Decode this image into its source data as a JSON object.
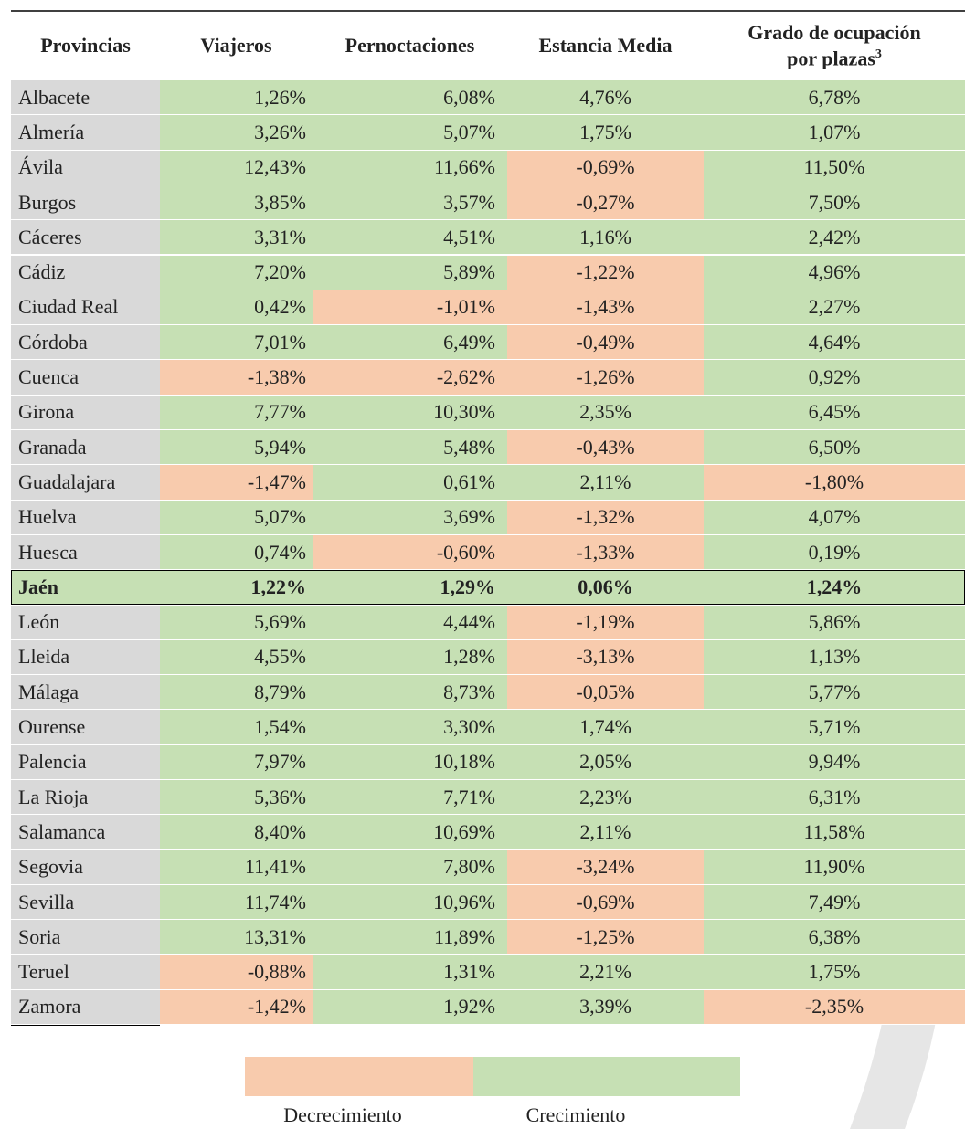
{
  "table": {
    "header": [
      "Provincias",
      "Viajeros",
      "Pernoctaciones",
      "Estancia Media",
      "Grado de ocupación por plazas"
    ],
    "header_note": "3",
    "rows": [
      [
        "Albacete",
        "1,26%",
        "6,08%",
        "4,76%",
        "6,78%"
      ],
      [
        "Almería",
        "3,26%",
        "5,07%",
        "1,75%",
        "1,07%"
      ],
      [
        "Ávila",
        "12,43%",
        "11,66%",
        "-0,69%",
        "11,50%"
      ],
      [
        "Burgos",
        "3,85%",
        "3,57%",
        "-0,27%",
        "7,50%"
      ],
      [
        "Cáceres",
        "3,31%",
        "4,51%",
        "1,16%",
        "2,42%"
      ],
      [
        "Cádiz",
        "7,20%",
        "5,89%",
        "-1,22%",
        "4,96%"
      ],
      [
        "Ciudad Real",
        "0,42%",
        "-1,01%",
        "-1,43%",
        "2,27%"
      ],
      [
        "Córdoba",
        "7,01%",
        "6,49%",
        "-0,49%",
        "4,64%"
      ],
      [
        "Cuenca",
        "-1,38%",
        "-2,62%",
        "-1,26%",
        "0,92%"
      ],
      [
        "Girona",
        "7,77%",
        "10,30%",
        "2,35%",
        "6,45%"
      ],
      [
        "Granada",
        "5,94%",
        "5,48%",
        "-0,43%",
        "6,50%"
      ],
      [
        "Guadalajara",
        "-1,47%",
        "0,61%",
        "2,11%",
        "-1,80%"
      ],
      [
        "Huelva",
        "5,07%",
        "3,69%",
        "-1,32%",
        "4,07%"
      ],
      [
        "Huesca",
        "0,74%",
        "-0,60%",
        "-1,33%",
        "0,19%"
      ],
      [
        "Jaén",
        "1,22%",
        "1,29%",
        "0,06%",
        "1,24%"
      ],
      [
        "León",
        "5,69%",
        "4,44%",
        "-1,19%",
        "5,86%"
      ],
      [
        "Lleida",
        "4,55%",
        "1,28%",
        "-3,13%",
        "1,13%"
      ],
      [
        "Málaga",
        "8,79%",
        "8,73%",
        "-0,05%",
        "5,77%"
      ],
      [
        "Ourense",
        "1,54%",
        "3,30%",
        "1,74%",
        "5,71%"
      ],
      [
        "Palencia",
        "7,97%",
        "10,18%",
        "2,05%",
        "9,94%"
      ],
      [
        "La Rioja",
        "5,36%",
        "7,71%",
        "2,23%",
        "6,31%"
      ],
      [
        "Salamanca",
        "8,40%",
        "10,69%",
        "2,11%",
        "11,58%"
      ],
      [
        "Segovia",
        "11,41%",
        "7,80%",
        "-3,24%",
        "11,90%"
      ],
      [
        "Sevilla",
        "11,74%",
        "10,96%",
        "-0,69%",
        "7,49%"
      ],
      [
        "Soria",
        "13,31%",
        "11,89%",
        "-1,25%",
        "6,38%"
      ],
      [
        "Teruel",
        "-0,88%",
        "1,31%",
        "2,21%",
        "1,75%"
      ],
      [
        "Zamora",
        "-1,42%",
        "1,92%",
        "3,39%",
        "-2,35%"
      ]
    ],
    "highlight_row": 14
  },
  "legend": [
    {
      "label": "Decrecimiento",
      "color": "#f8cbad"
    },
    {
      "label": "Crecimiento",
      "color": "#c6e0b4"
    }
  ]
}
